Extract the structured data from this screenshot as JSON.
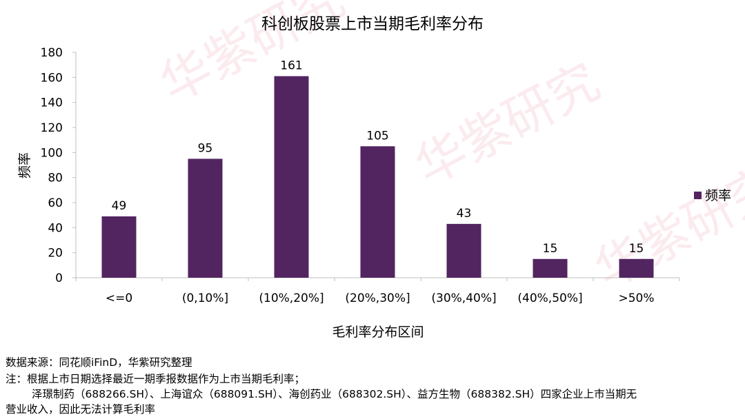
{
  "chart_data": {
    "type": "bar",
    "title": "科创板股票上市当期毛利率分布",
    "xlabel": "毛利率分布区间",
    "ylabel": "频率",
    "categories": [
      "<=0",
      "(0,10%]",
      "(10%,20%]",
      "(20%,30%]",
      "(30%,40%]",
      "(40%,50%]",
      ">50%"
    ],
    "series": [
      {
        "name": "频率",
        "values": [
          49,
          95,
          161,
          105,
          43,
          15,
          15
        ]
      }
    ],
    "ylim": [
      0,
      180
    ],
    "yticks": [
      0,
      20,
      40,
      60,
      80,
      100,
      120,
      140,
      160,
      180
    ],
    "data_labels": true,
    "grid": false,
    "legend_position": "right",
    "bar_color": "#522561"
  },
  "watermark": {
    "text": "华紫研究",
    "color": "#f2c6cf"
  },
  "notes": {
    "source": "数据来源：同花顺iFinD，华紫研究整理",
    "note_line1": "注：根据上市日期选择最近一期季报数据作为上市当期毛利率；",
    "note_line2": "泽璟制药（688266.SH）、上海谊众（688091.SH）、海创药业（688302.SH）、益方生物（688382.SH）四家企业上市当期无",
    "note_line3": "营业收入，因此无法计算毛利率"
  }
}
